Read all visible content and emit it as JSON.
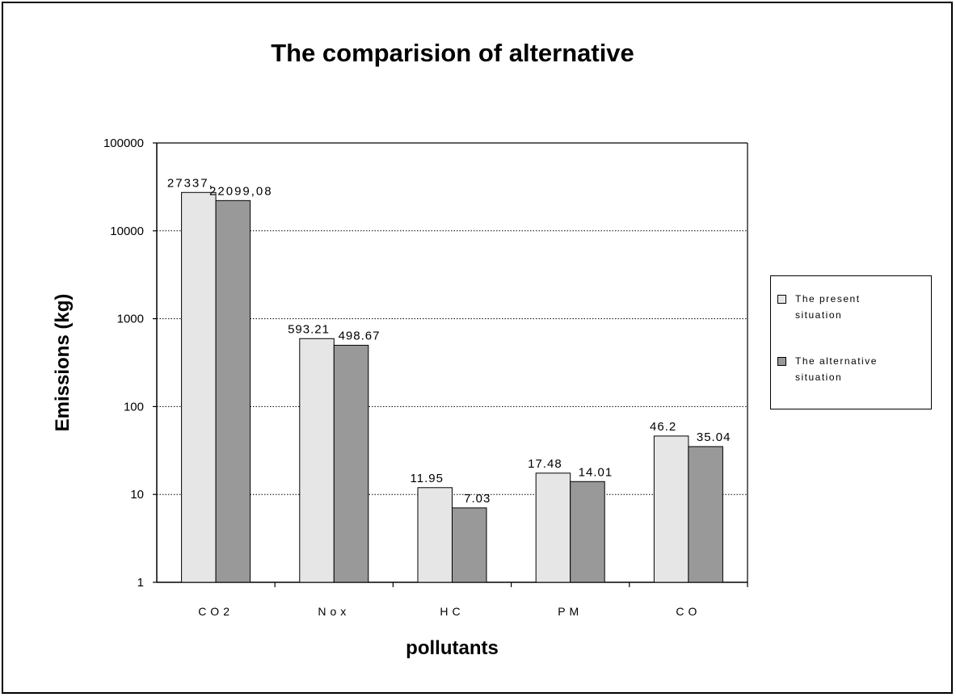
{
  "chart_data": {
    "type": "bar",
    "title": "The comparision of alternative",
    "xlabel": "pollutants",
    "ylabel": "Emissions (kg)",
    "yscale": "log",
    "ylim": [
      1,
      100000
    ],
    "yticks": [
      "1",
      "10",
      "100",
      "1000",
      "10000",
      "100000"
    ],
    "categories": [
      "CO2",
      "Nox",
      "HC",
      "PM",
      "CO"
    ],
    "series": [
      {
        "name": "The present situation",
        "color": "#e6e6e6",
        "values": [
          27337,
          593.21,
          11.95,
          17.48,
          46.2
        ],
        "labels": [
          "27337,",
          "593.21",
          "11.95",
          "17.48",
          "46.2"
        ]
      },
      {
        "name": "The alternative situation",
        "color": "#999999",
        "values": [
          22099.08,
          498.67,
          7.03,
          14.01,
          35.04
        ],
        "labels": [
          "22099,08",
          "498.67",
          "7.03",
          "14.01",
          "35.04"
        ]
      }
    ],
    "grid": true,
    "legend_position": "right"
  },
  "legend": {
    "items": [
      {
        "line1": "The present",
        "line2": "situation",
        "color": "#e6e6e6"
      },
      {
        "line1": "The alternative",
        "line2": "situation",
        "color": "#999999"
      }
    ]
  }
}
